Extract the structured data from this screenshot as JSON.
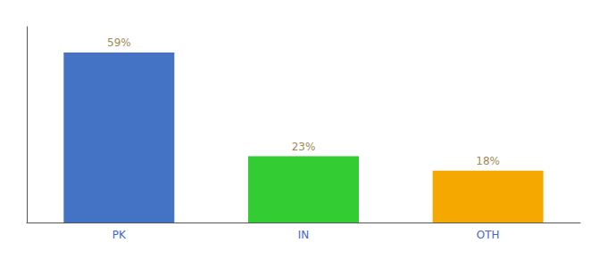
{
  "chart_data": {
    "type": "bar",
    "categories": [
      "PK",
      "IN",
      "OTH"
    ],
    "values": [
      59,
      23,
      18
    ],
    "value_labels": [
      "59%",
      "23%",
      "18%"
    ],
    "colors": [
      "#4472c4",
      "#33cc33",
      "#f5a800"
    ],
    "ylim": [
      0,
      68
    ],
    "yticks": [],
    "tick_labels": "x",
    "grid": false,
    "data_labels": true
  }
}
